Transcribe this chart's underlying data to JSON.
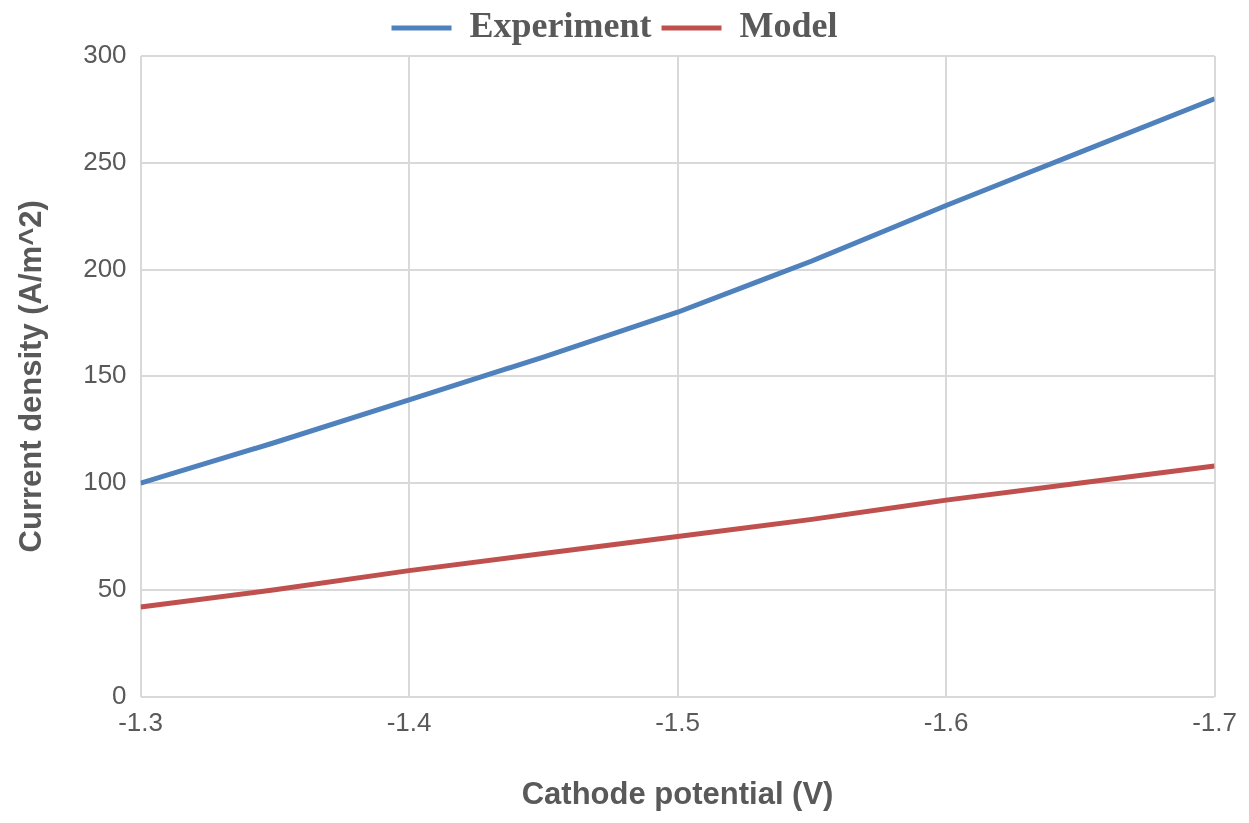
{
  "chart_data": {
    "type": "line",
    "xlabel": "Cathode potential (V)",
    "ylabel": "Current density (A/m^2)",
    "x": [
      -1.3,
      -1.35,
      -1.4,
      -1.45,
      -1.5,
      -1.55,
      -1.6,
      -1.65,
      -1.7
    ],
    "series": [
      {
        "name": "Experiment",
        "color": "#4f81bd",
        "values": [
          100,
          119,
          139,
          159,
          180,
          204,
          230,
          255,
          280
        ]
      },
      {
        "name": "Model",
        "color": "#c0504d",
        "values": [
          42,
          50,
          59,
          67,
          75,
          83,
          92,
          100,
          108
        ]
      }
    ],
    "xlim": [
      -1.3,
      -1.7
    ],
    "xticks": [
      -1.3,
      -1.4,
      -1.5,
      -1.6,
      -1.7
    ],
    "ylim": [
      0,
      300
    ],
    "yticks": [
      0,
      50,
      100,
      150,
      200,
      250,
      300
    ],
    "grid": true,
    "legend": "top",
    "marker": "none",
    "line_style": "solid"
  }
}
